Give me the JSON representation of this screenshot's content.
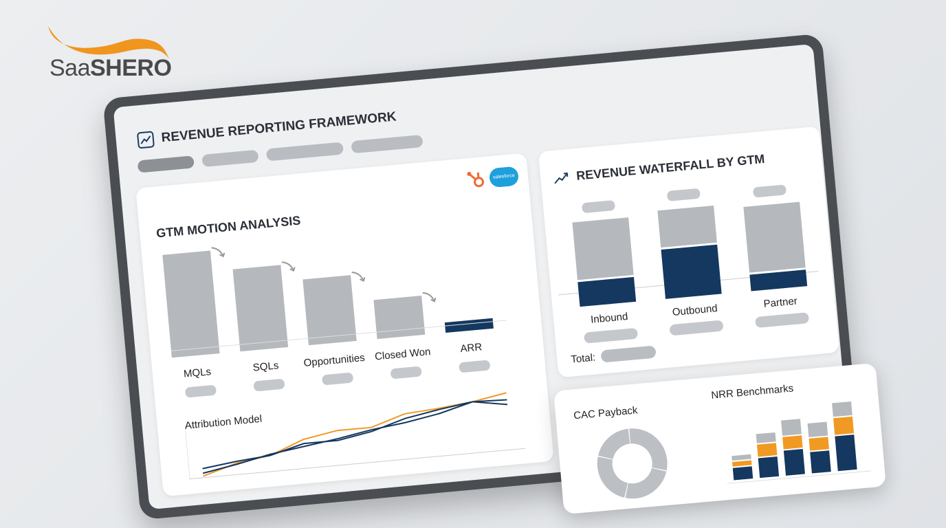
{
  "logo": {
    "text_light": "Saa",
    "text_bold": "SHERO"
  },
  "header": {
    "title": "REVENUE REPORTING FRAMEWORK",
    "icon": "chart-icon",
    "tabs": 4
  },
  "gtm": {
    "title": "GTM MOTION ANALYSIS",
    "integrations": [
      "hubspot-icon",
      "salesforce-icon"
    ],
    "salesforce_text": "salesforce",
    "stages": [
      "MQLs",
      "SQLs",
      "Opportunities",
      "Closed Won",
      "ARR"
    ],
    "attribution_title": "Attribution Model"
  },
  "waterfall": {
    "title": "REVENUE WATERFALL BY GTM",
    "icon": "trend-up-icon",
    "total_label": "Total:"
  },
  "overlay": {
    "cac_title": "CAC Payback",
    "nrr_title": "NRR Benchmarks"
  },
  "colors": {
    "navy": "#14385f",
    "grey": "#b5b8bc",
    "orange": "#f09a23"
  },
  "chart_data": [
    {
      "type": "bar",
      "name": "funnel",
      "categories": [
        "MQLs",
        "SQLs",
        "Opportunities",
        "Closed Won",
        "ARR"
      ],
      "values": [
        100,
        80,
        64,
        38,
        10
      ],
      "highlight": "ARR"
    },
    {
      "type": "bar",
      "name": "waterfall",
      "stacked": true,
      "categories": [
        "Inbound",
        "Outbound",
        "Partner"
      ],
      "series": [
        {
          "values": [
            30,
            60,
            20
          ]
        },
        {
          "values": [
            70,
            45,
            80
          ]
        }
      ]
    },
    {
      "type": "line",
      "name": "attribution",
      "x": [
        1,
        2,
        3,
        4,
        5,
        6,
        7,
        8,
        9,
        10
      ],
      "series": [
        {
          "color": "#f09a23",
          "values": [
            5,
            22,
            30,
            52,
            62,
            62,
            80,
            84,
            90,
            100
          ]
        },
        {
          "color": "#14385f",
          "values": [
            18,
            25,
            30,
            45,
            45,
            55,
            72,
            82,
            90,
            80
          ]
        },
        {
          "color": "#14385f",
          "values": [
            10,
            20,
            32,
            40,
            48,
            58,
            65,
            75,
            90,
            88
          ]
        }
      ]
    },
    {
      "type": "pie",
      "name": "cac-payback",
      "donut": true,
      "values": [
        30,
        25,
        25,
        20
      ]
    },
    {
      "type": "bar",
      "name": "nrr",
      "stacked": true,
      "categories": [
        "1",
        "2",
        "3",
        "4",
        "5"
      ],
      "series": [
        {
          "color": "#14385f",
          "values": [
            18,
            28,
            35,
            30,
            48
          ]
        },
        {
          "color": "#f09a23",
          "values": [
            8,
            18,
            18,
            18,
            24
          ]
        },
        {
          "color": "#b5b8bc",
          "values": [
            8,
            14,
            22,
            20,
            20
          ]
        }
      ]
    }
  ]
}
